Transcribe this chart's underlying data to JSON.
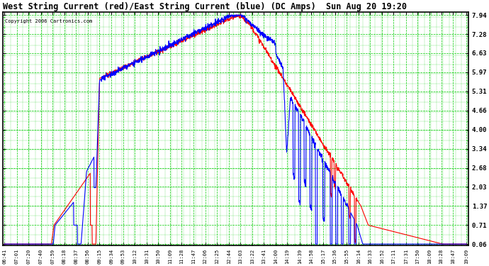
{
  "title": "West String Current (red)/East String Current (blue) (DC Amps)  Sun Aug 20 19:20",
  "copyright": "Copyright 2006 Cartronics.com",
  "bg_color": "#ffffff",
  "plot_bg_color": "#ffffff",
  "grid_color": "#00cc00",
  "red_color": "#ff0000",
  "blue_color": "#0000ff",
  "title_color": "#000000",
  "tick_color": "#000000",
  "yticks": [
    0.06,
    0.71,
    1.37,
    2.03,
    2.68,
    3.34,
    4.0,
    4.66,
    5.31,
    5.97,
    6.63,
    7.28,
    7.94
  ],
  "xtick_labels": [
    "06:41",
    "07:01",
    "07:20",
    "07:40",
    "07:59",
    "08:18",
    "08:37",
    "08:56",
    "09:15",
    "09:34",
    "09:53",
    "10:12",
    "10:31",
    "10:50",
    "11:09",
    "11:28",
    "11:47",
    "12:06",
    "12:25",
    "12:44",
    "13:03",
    "13:22",
    "13:41",
    "14:00",
    "14:19",
    "14:39",
    "14:58",
    "15:17",
    "15:36",
    "15:55",
    "16:14",
    "16:33",
    "16:52",
    "17:11",
    "17:31",
    "17:50",
    "18:09",
    "18:28",
    "18:47",
    "19:09"
  ],
  "ymin": 0.06,
  "ymax": 7.94,
  "border_color": "#000000",
  "figwidth": 6.9,
  "figheight": 3.75,
  "dpi": 100
}
